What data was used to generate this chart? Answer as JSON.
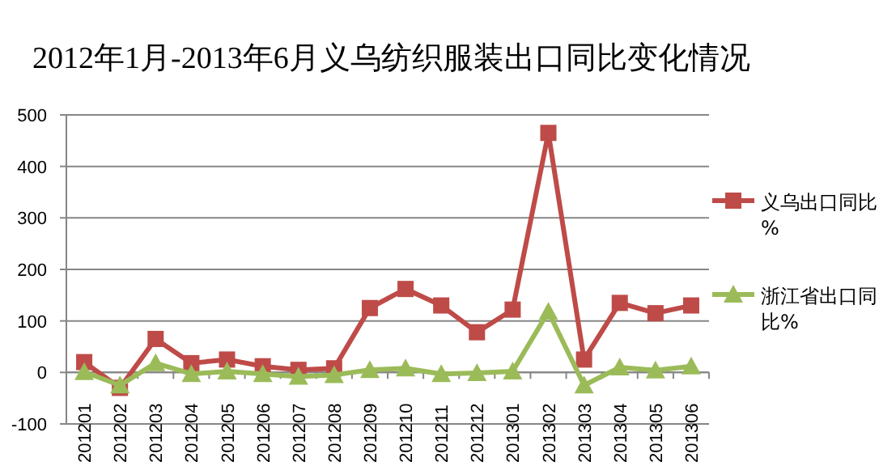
{
  "chart_data": {
    "type": "line",
    "title": "2012年1月-2013年6月义乌纺织服装出口同比变化情况",
    "categories": [
      "201201",
      "201202",
      "201203",
      "201204",
      "201205",
      "201206",
      "201207",
      "201208",
      "201209",
      "201210",
      "201211",
      "201212",
      "201301",
      "201302",
      "201303",
      "201304",
      "201305",
      "201306"
    ],
    "series": [
      {
        "name": "义乌出口同比%",
        "color": "#be4b48",
        "marker": "square",
        "values": [
          20,
          -30,
          65,
          18,
          25,
          12,
          5,
          8,
          125,
          162,
          130,
          78,
          122,
          465,
          25,
          135,
          115,
          130
        ]
      },
      {
        "name": "浙江省出口同比%",
        "color": "#9bbb59",
        "marker": "triangle",
        "values": [
          1,
          -25,
          18,
          -3,
          2,
          -3,
          -8,
          -5,
          5,
          8,
          -3,
          -1,
          2,
          118,
          -25,
          10,
          4,
          12
        ]
      }
    ],
    "ylim": [
      -100,
      500
    ],
    "yticks": [
      -100,
      0,
      100,
      200,
      300,
      400,
      500
    ],
    "grid": "y",
    "legend": "right"
  }
}
